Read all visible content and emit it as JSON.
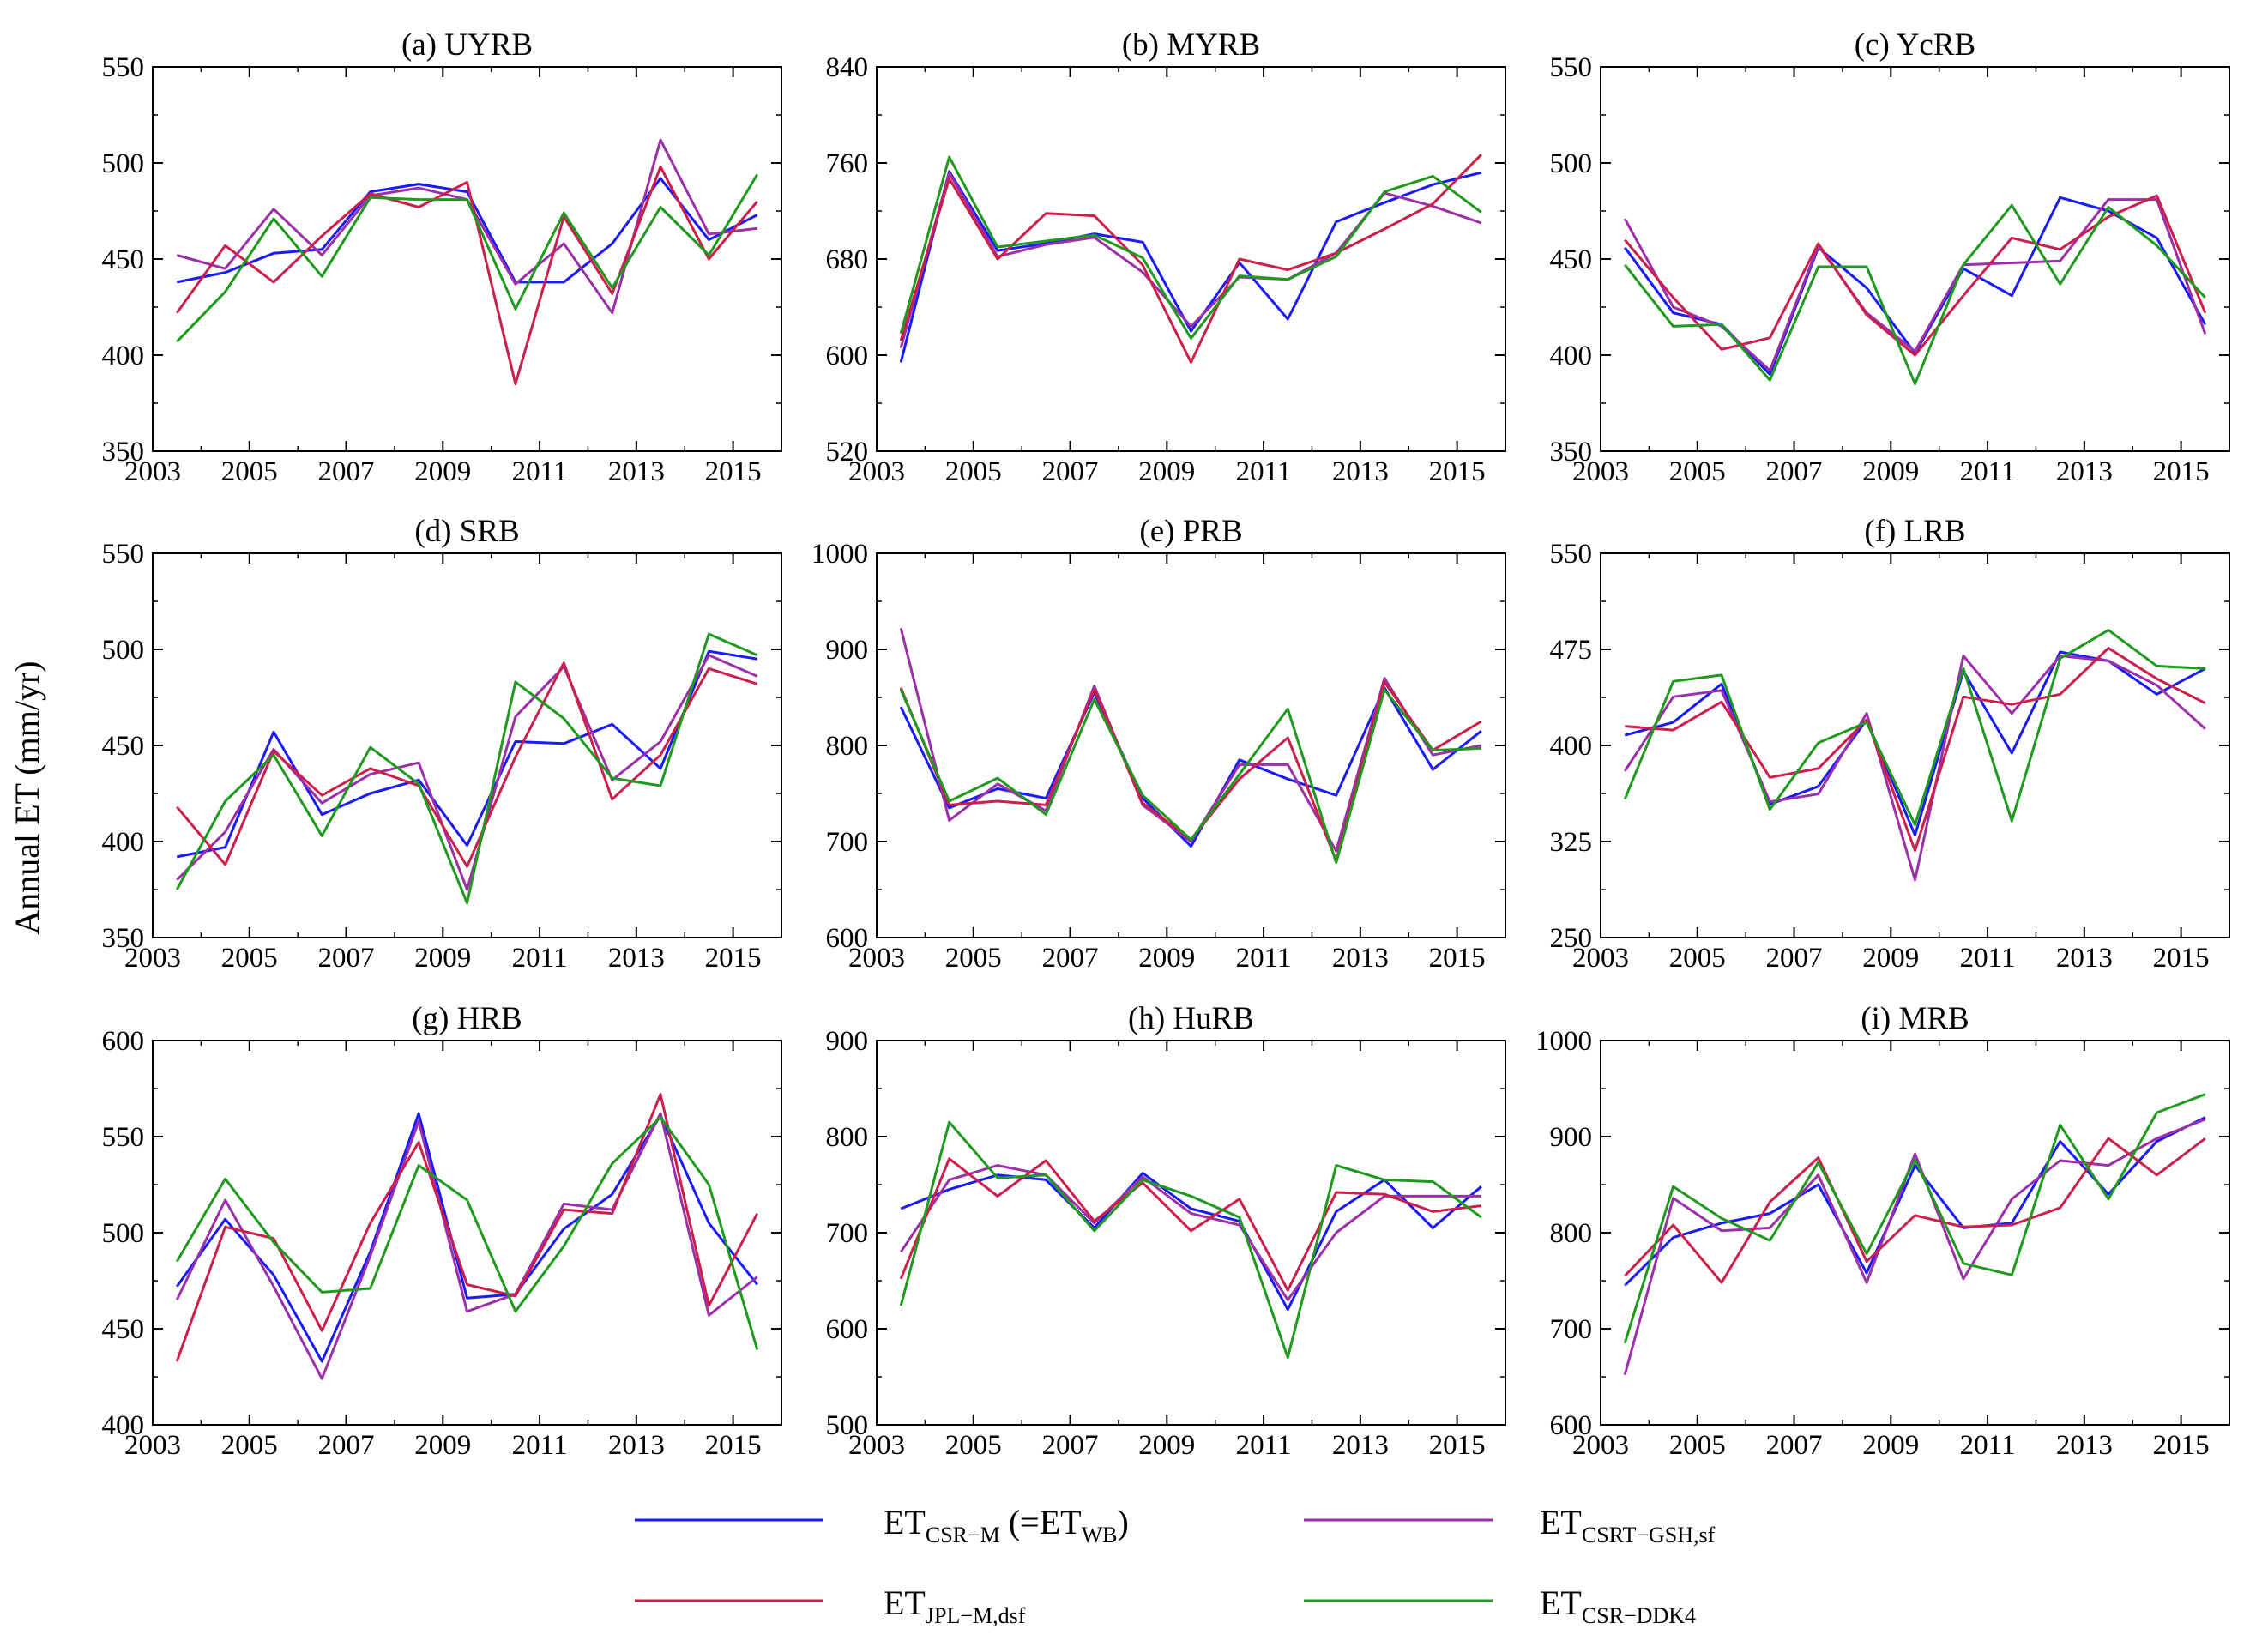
{
  "figure": {
    "ylabel": "Annual ET (mm/yr)"
  },
  "colors": {
    "csr_m": "#1a1aff",
    "jpl": "#cc1f4a",
    "csrt": "#9b30a8",
    "ddk4": "#1f9a1f"
  },
  "legend": [
    {
      "key": "csr_m",
      "main": "ET",
      "sub": "CSR−M",
      "tail": " (=ET",
      "sub2": "WB",
      "tail2": ")"
    },
    {
      "key": "csrt",
      "main": "ET",
      "sub": "CSRT−GSH,sf",
      "tail": "",
      "sub2": "",
      "tail2": ""
    },
    {
      "key": "jpl",
      "main": "ET",
      "sub": "JPL−M,dsf",
      "tail": "",
      "sub2": "",
      "tail2": ""
    },
    {
      "key": "ddk4",
      "main": "ET",
      "sub": "CSR−DDK4",
      "tail": "",
      "sub2": "",
      "tail2": ""
    }
  ],
  "chart_data": [
    {
      "type": "line",
      "title": "(a) UYRB",
      "xlabel": "",
      "ylabel": "Annual ET (mm/yr)",
      "xlim": [
        2003,
        2016
      ],
      "ylim": [
        350,
        550
      ],
      "yticks": [
        350,
        400,
        450,
        500,
        550
      ],
      "xticks": [
        2003,
        2005,
        2007,
        2009,
        2011,
        2013,
        2015
      ],
      "x": [
        2003.5,
        2004.5,
        2005.5,
        2006.5,
        2007.5,
        2008.5,
        2009.5,
        2010.5,
        2011.5,
        2012.5,
        2013.5,
        2014.5,
        2015.5
      ],
      "series": [
        {
          "key": "csr_m",
          "name": "ET CSR-M (=ET WB)",
          "values": [
            438,
            443,
            453,
            455,
            485,
            489,
            485,
            438,
            438,
            458,
            492,
            460,
            473
          ]
        },
        {
          "key": "csrt",
          "name": "ET CSRT-GSH,sf",
          "values": [
            452,
            445,
            476,
            452,
            483,
            487,
            481,
            437,
            458,
            422,
            512,
            463,
            466
          ]
        },
        {
          "key": "jpl",
          "name": "ET JPL-M,dsf",
          "values": [
            422,
            457,
            438,
            462,
            484,
            477,
            490,
            385,
            472,
            432,
            498,
            450,
            480
          ]
        },
        {
          "key": "ddk4",
          "name": "ET CSR-DDK4",
          "values": [
            407,
            433,
            471,
            441,
            482,
            481,
            481,
            424,
            474,
            435,
            477,
            452,
            494
          ]
        }
      ]
    },
    {
      "type": "line",
      "title": "(b) MYRB",
      "xlabel": "",
      "ylabel": "",
      "xlim": [
        2003,
        2016
      ],
      "ylim": [
        520,
        840
      ],
      "yticks": [
        520,
        600,
        680,
        760,
        840
      ],
      "xticks": [
        2003,
        2005,
        2007,
        2009,
        2011,
        2013,
        2015
      ],
      "x": [
        2003.5,
        2004.5,
        2005.5,
        2006.5,
        2007.5,
        2008.5,
        2009.5,
        2010.5,
        2011.5,
        2012.5,
        2013.5,
        2014.5,
        2015.5
      ],
      "series": [
        {
          "key": "csr_m",
          "name": "ET CSR-M (=ET WB)",
          "values": [
            594,
            753,
            687,
            693,
            701,
            694,
            620,
            677,
            630,
            711,
            727,
            742,
            752
          ]
        },
        {
          "key": "csrt",
          "name": "ET CSRT-GSH,sf",
          "values": [
            606,
            752,
            682,
            692,
            698,
            669,
            624,
            665,
            663,
            685,
            735,
            724,
            710
          ]
        },
        {
          "key": "jpl",
          "name": "ET JPL-M,dsf",
          "values": [
            612,
            747,
            680,
            718,
            716,
            675,
            594,
            680,
            671,
            685,
            705,
            726,
            767
          ]
        },
        {
          "key": "ddk4",
          "name": "ET CSR-DDK4",
          "values": [
            618,
            765,
            690,
            695,
            700,
            681,
            614,
            666,
            663,
            682,
            736,
            749,
            719
          ]
        }
      ]
    },
    {
      "type": "line",
      "title": "(c) YcRB",
      "xlabel": "",
      "ylabel": "",
      "xlim": [
        2003,
        2016
      ],
      "ylim": [
        350,
        550
      ],
      "yticks": [
        350,
        400,
        450,
        500,
        550
      ],
      "xticks": [
        2003,
        2005,
        2007,
        2009,
        2011,
        2013,
        2015
      ],
      "x": [
        2003.5,
        2004.5,
        2005.5,
        2006.5,
        2007.5,
        2008.5,
        2009.5,
        2010.5,
        2011.5,
        2012.5,
        2013.5,
        2014.5,
        2015.5
      ],
      "series": [
        {
          "key": "csr_m",
          "name": "ET CSR-M (=ET WB)",
          "values": [
            456,
            422,
            416,
            390,
            456,
            435,
            401,
            445,
            431,
            482,
            475,
            461,
            416
          ]
        },
        {
          "key": "csrt",
          "name": "ET CSRT-GSH,sf",
          "values": [
            471,
            425,
            415,
            392,
            457,
            422,
            402,
            447,
            448,
            449,
            481,
            481,
            411
          ]
        },
        {
          "key": "jpl",
          "name": "ET JPL-M,dsf",
          "values": [
            460,
            430,
            403,
            409,
            458,
            421,
            400,
            431,
            461,
            455,
            472,
            483,
            422
          ]
        },
        {
          "key": "ddk4",
          "name": "ET CSR-DDK4",
          "values": [
            447,
            415,
            416,
            387,
            446,
            446,
            385,
            447,
            478,
            437,
            477,
            457,
            430
          ]
        }
      ]
    },
    {
      "type": "line",
      "title": "(d) SRB",
      "xlabel": "",
      "ylabel": "Annual ET (mm/yr)",
      "xlim": [
        2003,
        2016
      ],
      "ylim": [
        350,
        550
      ],
      "yticks": [
        350,
        400,
        450,
        500,
        550
      ],
      "xticks": [
        2003,
        2005,
        2007,
        2009,
        2011,
        2013,
        2015
      ],
      "x": [
        2003.5,
        2004.5,
        2005.5,
        2006.5,
        2007.5,
        2008.5,
        2009.5,
        2010.5,
        2011.5,
        2012.5,
        2013.5,
        2014.5,
        2015.5
      ],
      "series": [
        {
          "key": "csr_m",
          "name": "ET CSR-M (=ET WB)",
          "values": [
            392,
            397,
            457,
            414,
            425,
            432,
            398,
            452,
            451,
            461,
            438,
            499,
            495
          ]
        },
        {
          "key": "csrt",
          "name": "ET CSRT-GSH,sf",
          "values": [
            380,
            405,
            448,
            420,
            435,
            441,
            375,
            465,
            491,
            432,
            452,
            497,
            486
          ]
        },
        {
          "key": "jpl",
          "name": "ET JPL-M,dsf",
          "values": [
            418,
            388,
            447,
            424,
            438,
            429,
            387,
            444,
            493,
            422,
            445,
            490,
            482
          ]
        },
        {
          "key": "ddk4",
          "name": "ET CSR-DDK4",
          "values": [
            375,
            421,
            445,
            403,
            449,
            430,
            368,
            483,
            464,
            433,
            429,
            508,
            497
          ]
        }
      ]
    },
    {
      "type": "line",
      "title": "(e) PRB",
      "xlabel": "",
      "ylabel": "",
      "xlim": [
        2003,
        2016
      ],
      "ylim": [
        600,
        1000
      ],
      "yticks": [
        600,
        700,
        800,
        900,
        1000
      ],
      "xticks": [
        2003,
        2005,
        2007,
        2009,
        2011,
        2013,
        2015
      ],
      "x": [
        2003.5,
        2004.5,
        2005.5,
        2006.5,
        2007.5,
        2008.5,
        2009.5,
        2010.5,
        2011.5,
        2012.5,
        2013.5,
        2014.5,
        2015.5
      ],
      "series": [
        {
          "key": "csr_m",
          "name": "ET CSR-M (=ET WB)",
          "values": [
            840,
            735,
            755,
            745,
            855,
            745,
            695,
            785,
            765,
            748,
            860,
            775,
            815
          ]
        },
        {
          "key": "csrt",
          "name": "ET CSRT-GSH,sf",
          "values": [
            922,
            722,
            760,
            732,
            862,
            738,
            700,
            780,
            780,
            690,
            870,
            790,
            800
          ]
        },
        {
          "key": "jpl",
          "name": "ET JPL-M,dsf",
          "values": [
            860,
            738,
            742,
            738,
            858,
            740,
            702,
            765,
            808,
            680,
            866,
            795,
            825
          ]
        },
        {
          "key": "ddk4",
          "name": "ET CSR-DDK4",
          "values": [
            858,
            742,
            766,
            728,
            848,
            748,
            702,
            770,
            838,
            678,
            858,
            795,
            797
          ]
        }
      ]
    },
    {
      "type": "line",
      "title": "(f) LRB",
      "xlabel": "",
      "ylabel": "",
      "xlim": [
        2003,
        2016
      ],
      "ylim": [
        250,
        550
      ],
      "yticks": [
        250,
        325,
        400,
        475,
        550
      ],
      "xticks": [
        2003,
        2005,
        2007,
        2009,
        2011,
        2013,
        2015
      ],
      "x": [
        2003.5,
        2004.5,
        2005.5,
        2006.5,
        2007.5,
        2008.5,
        2009.5,
        2010.5,
        2011.5,
        2012.5,
        2013.5,
        2014.5,
        2015.5
      ],
      "series": [
        {
          "key": "csr_m",
          "name": "ET CSR-M (=ET WB)",
          "values": [
            408,
            418,
            448,
            354,
            368,
            420,
            330,
            458,
            394,
            473,
            466,
            440,
            460
          ]
        },
        {
          "key": "csrt",
          "name": "ET CSRT-GSH,sf",
          "values": [
            380,
            438,
            443,
            356,
            362,
            425,
            295,
            470,
            425,
            470,
            466,
            447,
            413
          ]
        },
        {
          "key": "jpl",
          "name": "ET JPL-M,dsf",
          "values": [
            415,
            412,
            434,
            375,
            382,
            420,
            318,
            438,
            432,
            440,
            476,
            452,
            433
          ]
        },
        {
          "key": "ddk4",
          "name": "ET CSR-DDK4",
          "values": [
            358,
            450,
            455,
            350,
            402,
            418,
            338,
            460,
            341,
            468,
            490,
            462,
            460
          ]
        }
      ]
    },
    {
      "type": "line",
      "title": "(g) HRB",
      "xlabel": "",
      "ylabel": "",
      "xlim": [
        2003,
        2016
      ],
      "ylim": [
        400,
        600
      ],
      "yticks": [
        400,
        450,
        500,
        550,
        600
      ],
      "xticks": [
        2003,
        2005,
        2007,
        2009,
        2011,
        2013,
        2015
      ],
      "x": [
        2003.5,
        2004.5,
        2005.5,
        2006.5,
        2007.5,
        2008.5,
        2009.5,
        2010.5,
        2011.5,
        2012.5,
        2013.5,
        2014.5,
        2015.5
      ],
      "series": [
        {
          "key": "csr_m",
          "name": "ET CSR-M (=ET WB)",
          "values": [
            472,
            507,
            478,
            433,
            490,
            562,
            466,
            468,
            502,
            520,
            561,
            505,
            473
          ]
        },
        {
          "key": "csrt",
          "name": "ET CSRT-GSH,sf",
          "values": [
            465,
            517,
            472,
            424,
            488,
            558,
            459,
            468,
            515,
            512,
            562,
            457,
            477
          ]
        },
        {
          "key": "jpl",
          "name": "ET JPL-M,dsf",
          "values": [
            433,
            503,
            497,
            449,
            505,
            547,
            473,
            467,
            512,
            510,
            572,
            462,
            510
          ]
        },
        {
          "key": "ddk4",
          "name": "ET CSR-DDK4",
          "values": [
            485,
            528,
            495,
            469,
            471,
            535,
            517,
            459,
            493,
            536,
            560,
            525,
            439
          ]
        }
      ]
    },
    {
      "type": "line",
      "title": "(h) HuRB",
      "xlabel": "",
      "ylabel": "",
      "xlim": [
        2003,
        2016
      ],
      "ylim": [
        500,
        900
      ],
      "yticks": [
        500,
        600,
        700,
        800,
        900
      ],
      "xticks": [
        2003,
        2005,
        2007,
        2009,
        2011,
        2013,
        2015
      ],
      "x": [
        2003.5,
        2004.5,
        2005.5,
        2006.5,
        2007.5,
        2008.5,
        2009.5,
        2010.5,
        2011.5,
        2012.5,
        2013.5,
        2014.5,
        2015.5
      ],
      "series": [
        {
          "key": "csr_m",
          "name": "ET CSR-M (=ET WB)",
          "values": [
            725,
            745,
            760,
            755,
            705,
            762,
            725,
            712,
            620,
            722,
            755,
            705,
            748
          ]
        },
        {
          "key": "csrt",
          "name": "ET CSRT-GSH,sf",
          "values": [
            680,
            755,
            770,
            760,
            710,
            758,
            720,
            708,
            630,
            700,
            738,
            738,
            738
          ]
        },
        {
          "key": "jpl",
          "name": "ET JPL-M,dsf",
          "values": [
            652,
            777,
            738,
            775,
            712,
            752,
            702,
            735,
            640,
            742,
            740,
            722,
            728
          ]
        },
        {
          "key": "ddk4",
          "name": "ET CSR-DDK4",
          "values": [
            624,
            815,
            757,
            760,
            702,
            755,
            738,
            716,
            570,
            770,
            755,
            753,
            716
          ]
        }
      ]
    },
    {
      "type": "line",
      "title": "(i) MRB",
      "xlabel": "",
      "ylabel": "",
      "xlim": [
        2003,
        2016
      ],
      "ylim": [
        600,
        1000
      ],
      "yticks": [
        600,
        700,
        800,
        900,
        1000
      ],
      "xticks": [
        2003,
        2005,
        2007,
        2009,
        2011,
        2013,
        2015
      ],
      "x": [
        2003.5,
        2004.5,
        2005.5,
        2006.5,
        2007.5,
        2008.5,
        2009.5,
        2010.5,
        2011.5,
        2012.5,
        2013.5,
        2014.5,
        2015.5
      ],
      "series": [
        {
          "key": "csr_m",
          "name": "ET CSR-M (=ET WB)",
          "values": [
            745,
            795,
            810,
            820,
            850,
            758,
            870,
            805,
            810,
            895,
            840,
            895,
            920
          ]
        },
        {
          "key": "csrt",
          "name": "ET CSRT-GSH,sf",
          "values": [
            652,
            836,
            802,
            805,
            860,
            748,
            882,
            752,
            835,
            875,
            870,
            898,
            918
          ]
        },
        {
          "key": "jpl",
          "name": "ET JPL-M,dsf",
          "values": [
            755,
            808,
            748,
            832,
            878,
            770,
            818,
            806,
            808,
            826,
            898,
            860,
            898
          ]
        },
        {
          "key": "ddk4",
          "name": "ET CSR-DDK4",
          "values": [
            685,
            848,
            815,
            792,
            873,
            778,
            876,
            768,
            756,
            912,
            835,
            925,
            944
          ]
        }
      ]
    }
  ]
}
